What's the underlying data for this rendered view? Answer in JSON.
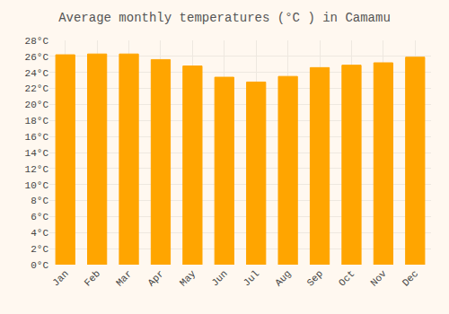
{
  "chart_data": {
    "type": "bar",
    "title": "Average monthly temperatures (°C ) in Camamu",
    "categories": [
      "Jan",
      "Feb",
      "Mar",
      "Apr",
      "May",
      "Jun",
      "Jul",
      "Aug",
      "Sep",
      "Oct",
      "Nov",
      "Dec"
    ],
    "values": [
      26.2,
      26.3,
      26.3,
      25.6,
      24.8,
      23.4,
      22.8,
      23.5,
      24.6,
      24.9,
      25.2,
      25.9
    ],
    "color": "#FFA500",
    "ylim": [
      0,
      28
    ],
    "yticks": [
      {
        "value": 0,
        "label": "0°C"
      },
      {
        "value": 2,
        "label": "2°C"
      },
      {
        "value": 4,
        "label": "4°C"
      },
      {
        "value": 6,
        "label": "6°C"
      },
      {
        "value": 8,
        "label": "8°C"
      },
      {
        "value": 10,
        "label": "10°C"
      },
      {
        "value": 12,
        "label": "12°C"
      },
      {
        "value": 14,
        "label": "14°C"
      },
      {
        "value": 16,
        "label": "16°C"
      },
      {
        "value": 18,
        "label": "18°C"
      },
      {
        "value": 20,
        "label": "20°C"
      },
      {
        "value": 22,
        "label": "22°C"
      },
      {
        "value": 24,
        "label": "24°C"
      },
      {
        "value": 26,
        "label": "26°C"
      },
      {
        "value": 28,
        "label": "28°C"
      }
    ],
    "grid": true
  }
}
